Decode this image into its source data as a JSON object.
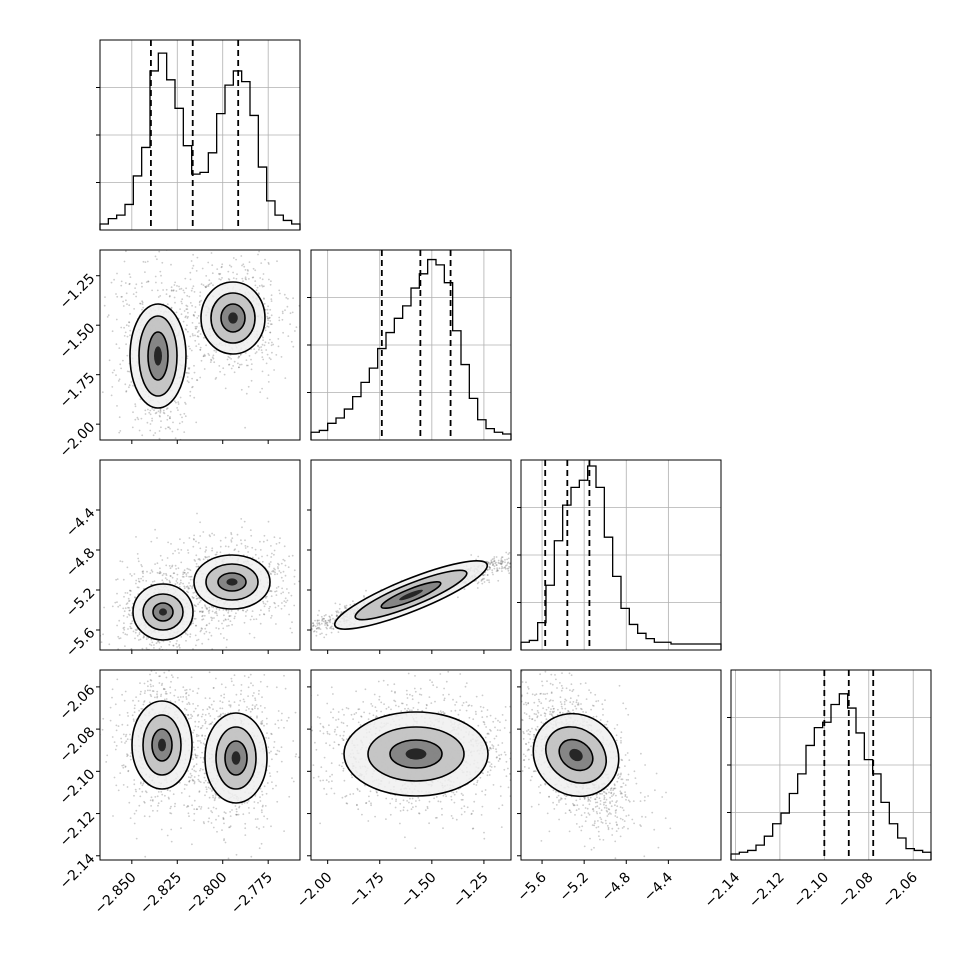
{
  "chart_data": {
    "type": "corner",
    "grid": true,
    "parameters": [
      {
        "range": [
          -2.8675,
          -2.7575
        ],
        "ticks": [
          -2.85,
          -2.825,
          -2.8,
          -2.775
        ],
        "tick_labels": [
          "−2.850",
          "−2.825",
          "−2.800",
          "−2.775"
        ],
        "quantiles": [
          -2.8395,
          -2.8165,
          -2.7915
        ]
      },
      {
        "range": [
          -2.08,
          -1.12
        ],
        "ticks": [
          -2.0,
          -1.75,
          -1.5,
          -1.25
        ],
        "tick_labels": [
          "−2.00",
          "−1.75",
          "−1.50",
          "−1.25"
        ],
        "quantiles": [
          -1.74,
          -1.555,
          -1.41
        ]
      },
      {
        "range": [
          -5.8,
          -3.9
        ],
        "ticks": [
          -5.6,
          -5.2,
          -4.8,
          -4.4
        ],
        "tick_labels": [
          "−5.6",
          "−5.2",
          "−4.8",
          "−4.4"
        ],
        "quantiles": [
          -5.57,
          -5.36,
          -5.15
        ]
      },
      {
        "range": [
          -2.142,
          -2.052
        ],
        "ticks": [
          -2.14,
          -2.12,
          -2.1,
          -2.08,
          -2.06
        ],
        "tick_labels": [
          "−2.14",
          "−2.12",
          "−2.10",
          "−2.08",
          "−2.06"
        ],
        "quantiles": [
          -2.1,
          -2.089,
          -2.078
        ]
      }
    ],
    "histograms": [
      [
        0,
        0.03,
        0.05,
        0.11,
        0.27,
        0.43,
        0.86,
        0.96,
        0.81,
        0.65,
        0.44,
        0.28,
        0.29,
        0.4,
        0.62,
        0.78,
        0.86,
        0.8,
        0.61,
        0.32,
        0.13,
        0.05,
        0.02,
        0
      ],
      [
        0.01,
        0.02,
        0.06,
        0.09,
        0.14,
        0.21,
        0.29,
        0.37,
        0.48,
        0.57,
        0.65,
        0.72,
        0.82,
        0.9,
        0.98,
        0.95,
        0.85,
        0.58,
        0.39,
        0.2,
        0.08,
        0.03,
        0.01,
        0
      ],
      [
        0.01,
        0.02,
        0.12,
        0.33,
        0.58,
        0.78,
        0.88,
        0.92,
        1.0,
        0.88,
        0.6,
        0.38,
        0.2,
        0.11,
        0.06,
        0.03,
        0.01,
        0.01,
        0,
        0,
        0,
        0,
        0,
        0
      ],
      [
        0,
        0.01,
        0.02,
        0.05,
        0.1,
        0.17,
        0.23,
        0.34,
        0.45,
        0.61,
        0.71,
        0.74,
        0.84,
        0.9,
        0.82,
        0.68,
        0.53,
        0.45,
        0.29,
        0.17,
        0.09,
        0.03,
        0.02,
        0.01
      ]
    ]
  }
}
